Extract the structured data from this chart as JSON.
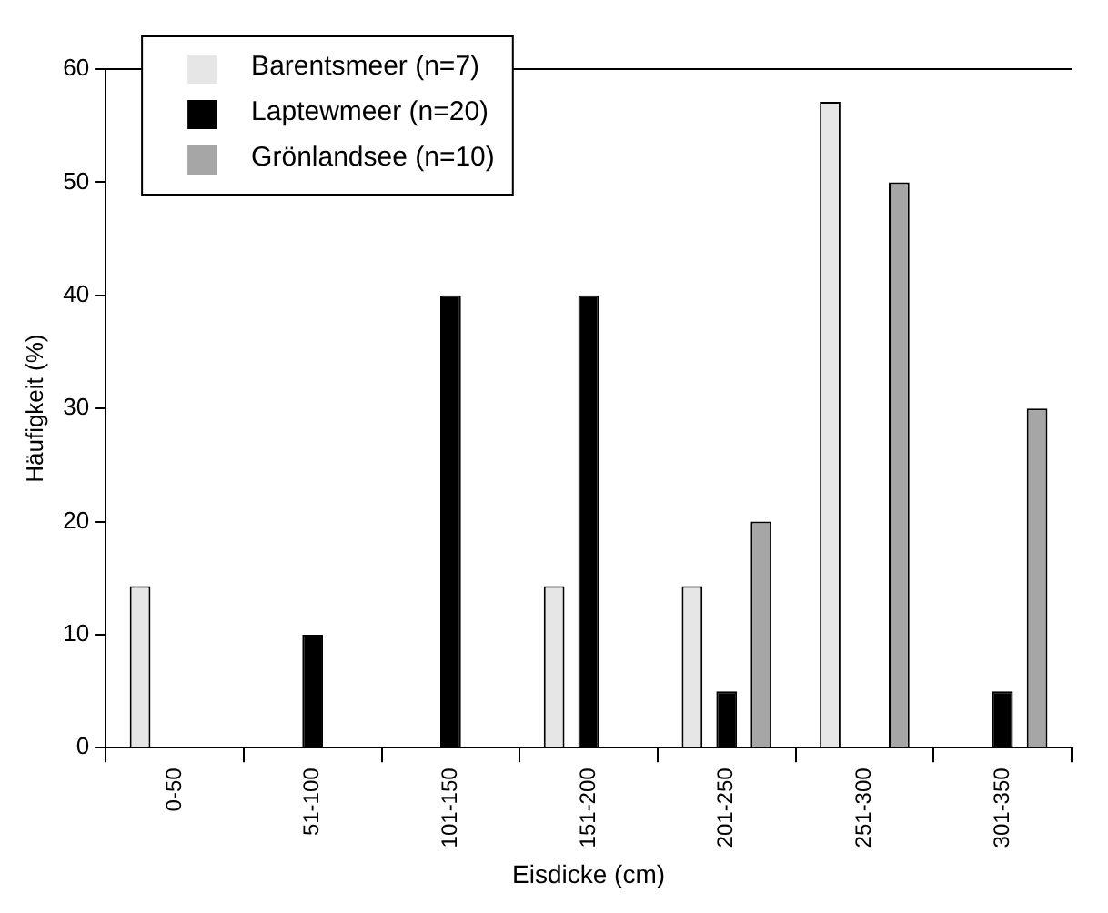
{
  "chart_data": {
    "type": "bar",
    "xlabel": "Eisdicke (cm)",
    "ylabel": "Häufigkeit (%)",
    "categories": [
      "0-50",
      "51-100",
      "101-150",
      "151-200",
      "201-250",
      "251-300",
      "301-350"
    ],
    "series": [
      {
        "name": "Barentsmeer (n=7)",
        "color": "#e6e6e6",
        "values": [
          14.3,
          0,
          0,
          14.3,
          14.3,
          57.1,
          0
        ]
      },
      {
        "name": "Laptewmeer (n=20)",
        "color": "#000000",
        "values": [
          0,
          10,
          40,
          40,
          5,
          0,
          5
        ]
      },
      {
        "name": "Grönlandsee (n=10)",
        "color": "#a6a6a6",
        "values": [
          0,
          0,
          0,
          0,
          20,
          50,
          30
        ]
      }
    ],
    "ylim": [
      0,
      60
    ],
    "yticks": [
      0,
      10,
      20,
      30,
      40,
      50,
      60
    ],
    "grid": false,
    "legend": "top left"
  }
}
